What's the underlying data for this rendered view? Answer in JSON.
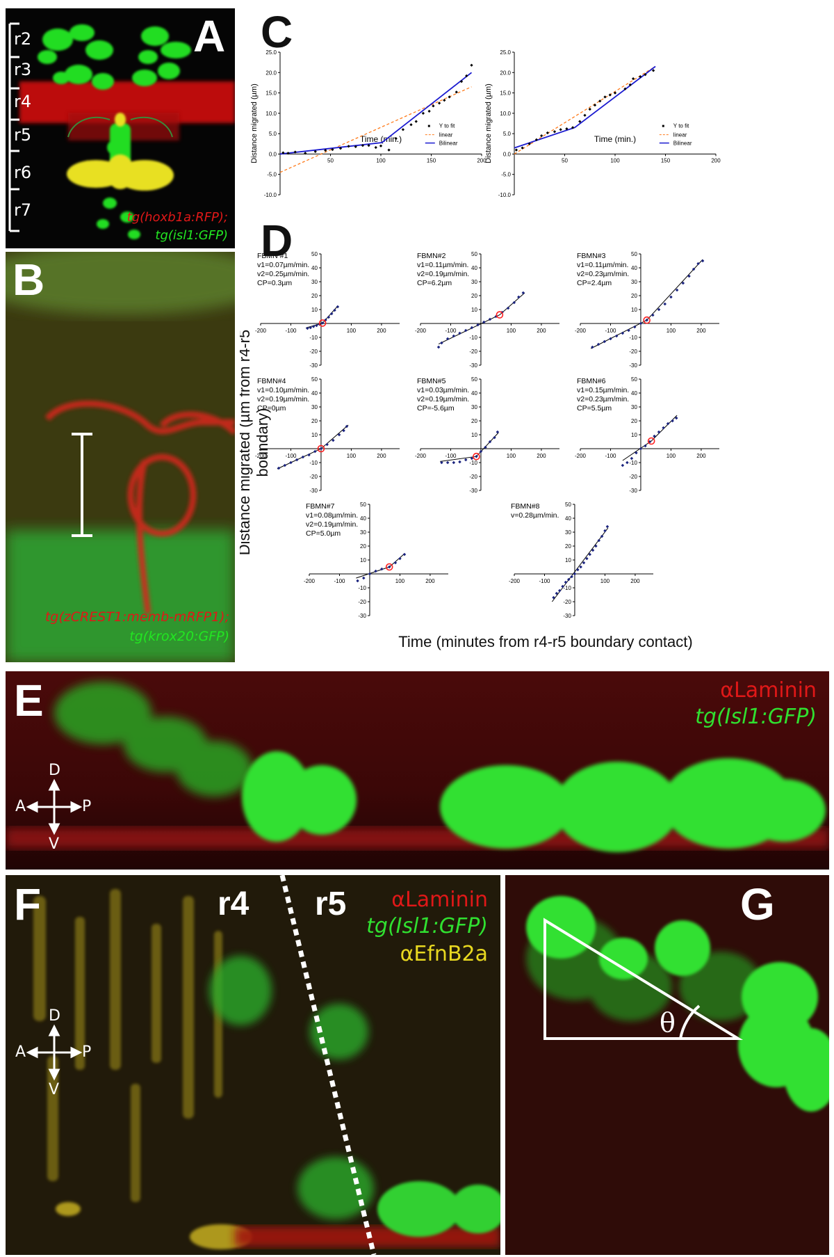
{
  "panels": {
    "A": {
      "label": "A",
      "rhombomeres": [
        "r2",
        "r3",
        "r4",
        "r5",
        "r6",
        "r7"
      ],
      "legend_red": "tg(hoxb1a:RFP);",
      "legend_green": "tg(isl1:GFP)"
    },
    "B": {
      "label": "B",
      "legend_red": "tg(zCREST1:memb-mRFP1);",
      "legend_green": "tg(krox20:GFP)"
    },
    "C": {
      "label": "C"
    },
    "D": {
      "label": "D",
      "ylabel": "Distance migrated (µm from r4-r5 boundary)",
      "xlabel": "Time (minutes from r4-r5 boundary contact)"
    },
    "E": {
      "label": "E",
      "legend_red": "αLaminin",
      "legend_green": "tg(Isl1:GFP)",
      "axes": {
        "d": "D",
        "v": "V",
        "a": "A",
        "p": "P"
      }
    },
    "F": {
      "label": "F",
      "r4": "r4",
      "r5": "r5",
      "legend_red": "αLaminin",
      "legend_green": "tg(Isl1:GFP)",
      "legend_yellow": "αEfnB2a",
      "axes": {
        "d": "D",
        "v": "V",
        "a": "A",
        "p": "P"
      }
    },
    "G": {
      "label": "G",
      "angle": "θ"
    }
  },
  "colors": {
    "red": "#ff2020",
    "green": "#22e622",
    "yellow": "#f0e020",
    "navy": "#1a237e",
    "fit_blue": "#1a1ad0",
    "linear_orange": "#ff7a1a",
    "cp_red": "#ff2020"
  },
  "chart_data": [
    {
      "id": "C-left",
      "type": "scatter",
      "xlabel": "Time (min.)",
      "ylabel": "Distance migrated (µm)",
      "xlim": [
        0,
        200
      ],
      "ylim": [
        -10,
        25
      ],
      "xticks": [
        50,
        100,
        150,
        200
      ],
      "yticks": [
        -10.0,
        -5.0,
        0.0,
        5.0,
        10.0,
        15.0,
        20.0,
        25.0
      ],
      "ytick_labels": [
        "-10.0",
        "-5.0",
        "0.0",
        "5.0",
        "10.0",
        "15.0",
        "20.0",
        "25.0"
      ],
      "legend": [
        "Y to fit",
        "linear",
        "Bilinear"
      ],
      "points": [
        [
          3,
          0.3
        ],
        [
          8,
          0.2
        ],
        [
          15,
          0.5
        ],
        [
          25,
          0.2
        ],
        [
          35,
          0.6
        ],
        [
          45,
          0.9
        ],
        [
          52,
          1.1
        ],
        [
          60,
          1.4
        ],
        [
          68,
          1.9
        ],
        [
          75,
          1.8
        ],
        [
          82,
          2.1
        ],
        [
          88,
          2.1
        ],
        [
          95,
          1.6
        ],
        [
          100,
          2.0
        ],
        [
          108,
          1.0
        ],
        [
          115,
          3.8
        ],
        [
          122,
          6.0
        ],
        [
          130,
          7.2
        ],
        [
          135,
          8.0
        ],
        [
          142,
          10.0
        ],
        [
          148,
          10.5
        ],
        [
          152,
          11.8
        ],
        [
          158,
          12.5
        ],
        [
          163,
          13.2
        ],
        [
          168,
          14.0
        ],
        [
          175,
          15.2
        ],
        [
          180,
          17.8
        ],
        [
          185,
          19.2
        ],
        [
          190,
          21.8
        ]
      ],
      "linear": [
        [
          0,
          -4.5
        ],
        [
          190,
          16.5
        ]
      ],
      "bilinear": [
        [
          0,
          0
        ],
        [
          101,
          2.8
        ],
        [
          190,
          20.0
        ]
      ]
    },
    {
      "id": "C-right",
      "type": "scatter",
      "xlabel": "Time (min.)",
      "ylabel": "Distance migrated (µm)",
      "xlim": [
        0,
        200
      ],
      "ylim": [
        -10,
        25
      ],
      "xticks": [
        50,
        100,
        150,
        200
      ],
      "yticks": [
        -10.0,
        -5.0,
        0.0,
        5.0,
        10.0,
        15.0,
        20.0,
        25.0
      ],
      "ytick_labels": [
        "-10.0",
        "-5.0",
        "0.0",
        "5.0",
        "10.0",
        "15.0",
        "20.0",
        "25.0"
      ],
      "legend": [
        "Y to fit",
        "linear",
        "Bilinear"
      ],
      "points": [
        [
          2,
          1.0
        ],
        [
          8,
          1.5
        ],
        [
          15,
          2.5
        ],
        [
          22,
          3.5
        ],
        [
          27,
          4.5
        ],
        [
          33,
          5.2
        ],
        [
          40,
          5.5
        ],
        [
          46,
          6.0
        ],
        [
          52,
          6.2
        ],
        [
          58,
          6.5
        ],
        [
          65,
          8.0
        ],
        [
          70,
          9.5
        ],
        [
          75,
          11.0
        ],
        [
          80,
          12.0
        ],
        [
          85,
          13.0
        ],
        [
          90,
          14.0
        ],
        [
          95,
          14.5
        ],
        [
          100,
          15.0
        ],
        [
          110,
          16.0
        ],
        [
          115,
          17.0
        ],
        [
          118,
          18.5
        ],
        [
          125,
          19.0
        ],
        [
          130,
          19.5
        ],
        [
          138,
          20.5
        ]
      ],
      "linear": [
        [
          0,
          0.0
        ],
        [
          140,
          21.5
        ]
      ],
      "bilinear": [
        [
          0,
          1.5
        ],
        [
          60,
          6.5
        ],
        [
          140,
          21.5
        ]
      ]
    },
    {
      "id": "D1",
      "type": "scatter",
      "lines": [
        "FBMN #1",
        "v1=0.07µm/min.",
        "v2=0.25µm/min.",
        "CP=0.3µm"
      ],
      "xlim": [
        -200,
        260
      ],
      "ylim": [
        -30,
        50
      ],
      "xticks": [
        -200,
        -100,
        100,
        200
      ],
      "yticks": [
        -30,
        -20,
        -10,
        10,
        20,
        30,
        40,
        50
      ],
      "cp": [
        5,
        0.3
      ],
      "points": [
        [
          -45,
          -3.5
        ],
        [
          -35,
          -3.0
        ],
        [
          -25,
          -2.2
        ],
        [
          -15,
          -1.5
        ],
        [
          -5,
          -0.6
        ],
        [
          5,
          0.3
        ],
        [
          15,
          2.5
        ],
        [
          25,
          4.5
        ],
        [
          35,
          7.0
        ],
        [
          45,
          9.5
        ],
        [
          55,
          12.0
        ]
      ],
      "fit": [
        [
          -50,
          -3.2
        ],
        [
          5,
          0.3
        ],
        [
          55,
          12.5
        ]
      ]
    },
    {
      "id": "D2",
      "type": "scatter",
      "lines": [
        "FBMN#2",
        "v1=0.11µm/min.",
        "v2=0.19µm/min.",
        "CP=6.2µm"
      ],
      "xlim": [
        -200,
        260
      ],
      "ylim": [
        -30,
        50
      ],
      "xticks": [
        -200,
        -100,
        100,
        200
      ],
      "yticks": [
        -30,
        -20,
        -10,
        10,
        20,
        30,
        40,
        50
      ],
      "cp": [
        62,
        6.2
      ],
      "points": [
        [
          -140,
          -17
        ],
        [
          -130,
          -14
        ],
        [
          -110,
          -11
        ],
        [
          -90,
          -9
        ],
        [
          -70,
          -7
        ],
        [
          -50,
          -5
        ],
        [
          -30,
          -3
        ],
        [
          -10,
          -1
        ],
        [
          10,
          1
        ],
        [
          30,
          3
        ],
        [
          50,
          5
        ],
        [
          70,
          8
        ],
        [
          90,
          11
        ],
        [
          110,
          15
        ],
        [
          125,
          19
        ],
        [
          140,
          22
        ]
      ],
      "fit": [
        [
          -140,
          -14.8
        ],
        [
          62,
          6.2
        ],
        [
          145,
          22.0
        ]
      ]
    },
    {
      "id": "D3",
      "type": "scatter",
      "lines": [
        "FBMN#3",
        "v1=0.11µm/min.",
        "v2=0.23µm/min.",
        "CP=2.4µm"
      ],
      "xlim": [
        -200,
        260
      ],
      "ylim": [
        -30,
        50
      ],
      "xticks": [
        -200,
        -100,
        100,
        200
      ],
      "yticks": [
        -30,
        -20,
        -10,
        10,
        20,
        30,
        40,
        50
      ],
      "cp": [
        20,
        2.4
      ],
      "points": [
        [
          -160,
          -17
        ],
        [
          -140,
          -15
        ],
        [
          -120,
          -13
        ],
        [
          -100,
          -11
        ],
        [
          -80,
          -9
        ],
        [
          -60,
          -7
        ],
        [
          -40,
          -5
        ],
        [
          -20,
          -2.5
        ],
        [
          0,
          0
        ],
        [
          20,
          2.4
        ],
        [
          40,
          6
        ],
        [
          60,
          10
        ],
        [
          80,
          14
        ],
        [
          100,
          19
        ],
        [
          120,
          24
        ],
        [
          140,
          29
        ],
        [
          160,
          34
        ],
        [
          175,
          39
        ],
        [
          190,
          43
        ],
        [
          205,
          45
        ]
      ],
      "fit": [
        [
          -165,
          -18
        ],
        [
          20,
          2.4
        ],
        [
          205,
          46
        ]
      ]
    },
    {
      "id": "D4",
      "type": "scatter",
      "lines": [
        "FBMN#4",
        "v1=0.10µm/min.",
        "v2=0.19µm/min.",
        "CP=0µm"
      ],
      "xlim": [
        -200,
        260
      ],
      "ylim": [
        -30,
        50
      ],
      "xticks": [
        -200,
        -100,
        100,
        200
      ],
      "yticks": [
        -30,
        -20,
        -10,
        10,
        20,
        30,
        40,
        50
      ],
      "cp": [
        0,
        0
      ],
      "points": [
        [
          -140,
          -14
        ],
        [
          -120,
          -12
        ],
        [
          -100,
          -10
        ],
        [
          -80,
          -8
        ],
        [
          -60,
          -6
        ],
        [
          -40,
          -4.5
        ],
        [
          -20,
          -2
        ],
        [
          0,
          0
        ],
        [
          20,
          3
        ],
        [
          40,
          6
        ],
        [
          60,
          10
        ],
        [
          75,
          13
        ],
        [
          85,
          16
        ]
      ],
      "fit": [
        [
          -145,
          -14.5
        ],
        [
          0,
          0
        ],
        [
          90,
          17
        ]
      ]
    },
    {
      "id": "D5",
      "type": "scatter",
      "lines": [
        "FBMN#5",
        "v1=0.03µm/min.",
        "v2=0.19µm/min.",
        "CP=-5.6µm"
      ],
      "xlim": [
        -200,
        260
      ],
      "ylim": [
        -30,
        50
      ],
      "xticks": [
        -200,
        -100,
        100,
        200
      ],
      "yticks": [
        -30,
        -20,
        -10,
        10,
        20,
        30,
        40,
        50
      ],
      "cp": [
        -15,
        -5.6
      ],
      "points": [
        [
          -130,
          -10
        ],
        [
          -110,
          -10
        ],
        [
          -90,
          -10
        ],
        [
          -70,
          -9.5
        ],
        [
          -50,
          -8
        ],
        [
          -30,
          -7
        ],
        [
          -15,
          -5.6
        ],
        [
          0,
          -2
        ],
        [
          15,
          1
        ],
        [
          30,
          5
        ],
        [
          45,
          8
        ],
        [
          55,
          12
        ]
      ],
      "fit": [
        [
          -135,
          -9.2
        ],
        [
          -15,
          -5.6
        ],
        [
          58,
          11.5
        ]
      ]
    },
    {
      "id": "D6",
      "type": "scatter",
      "lines": [
        "FBMN#6",
        "v1=0.15µm/min.",
        "v2=0.23µm/min.",
        "CP=5.5µm"
      ],
      "xlim": [
        -200,
        260
      ],
      "ylim": [
        -30,
        50
      ],
      "xticks": [
        -200,
        -100,
        100,
        200
      ],
      "yticks": [
        -30,
        -20,
        -10,
        10,
        20,
        30,
        40,
        50
      ],
      "cp": [
        35,
        5.5
      ],
      "points": [
        [
          -60,
          -12
        ],
        [
          -45,
          -10
        ],
        [
          -30,
          -7
        ],
        [
          -15,
          -3
        ],
        [
          0,
          0
        ],
        [
          15,
          2
        ],
        [
          30,
          5
        ],
        [
          45,
          9
        ],
        [
          60,
          12
        ],
        [
          75,
          15
        ],
        [
          90,
          18
        ],
        [
          105,
          20
        ],
        [
          118,
          22
        ]
      ],
      "fit": [
        [
          -60,
          -8.5
        ],
        [
          35,
          5.5
        ],
        [
          120,
          24
        ]
      ]
    },
    {
      "id": "D7",
      "type": "scatter",
      "lines": [
        "FBMN#7",
        "v1=0.08µm/min.",
        "v2=0.19µm/min.",
        "CP=5.0µm"
      ],
      "xlim": [
        -200,
        260
      ],
      "ylim": [
        -30,
        50
      ],
      "xticks": [
        -200,
        -100,
        100,
        200
      ],
      "yticks": [
        -30,
        -20,
        -10,
        10,
        20,
        30,
        40,
        50
      ],
      "cp": [
        65,
        5.0
      ],
      "points": [
        [
          -40,
          -5
        ],
        [
          -20,
          -3
        ],
        [
          0,
          0
        ],
        [
          20,
          2
        ],
        [
          40,
          3.5
        ],
        [
          65,
          5
        ],
        [
          85,
          8
        ],
        [
          100,
          11
        ],
        [
          115,
          14
        ]
      ],
      "fit": [
        [
          -45,
          -3
        ],
        [
          65,
          5.0
        ],
        [
          115,
          14.5
        ]
      ]
    },
    {
      "id": "D8",
      "type": "scatter",
      "lines": [
        "FBMN#8",
        "v=0.28µm/min."
      ],
      "xlim": [
        -200,
        260
      ],
      "ylim": [
        -30,
        50
      ],
      "xticks": [
        -200,
        -100,
        100,
        200
      ],
      "yticks": [
        -30,
        -20,
        -10,
        10,
        20,
        30,
        40,
        50
      ],
      "cp": null,
      "points": [
        [
          -70,
          -17
        ],
        [
          -60,
          -14
        ],
        [
          -50,
          -12
        ],
        [
          -40,
          -9
        ],
        [
          -30,
          -6
        ],
        [
          -20,
          -4
        ],
        [
          -10,
          -2
        ],
        [
          0,
          0
        ],
        [
          10,
          3
        ],
        [
          20,
          5
        ],
        [
          30,
          8
        ],
        [
          40,
          11
        ],
        [
          50,
          14
        ],
        [
          60,
          17
        ],
        [
          70,
          20
        ],
        [
          80,
          24
        ],
        [
          90,
          27
        ],
        [
          100,
          31
        ],
        [
          108,
          34
        ]
      ],
      "fit": [
        [
          -75,
          -20
        ],
        [
          110,
          33
        ]
      ]
    }
  ]
}
